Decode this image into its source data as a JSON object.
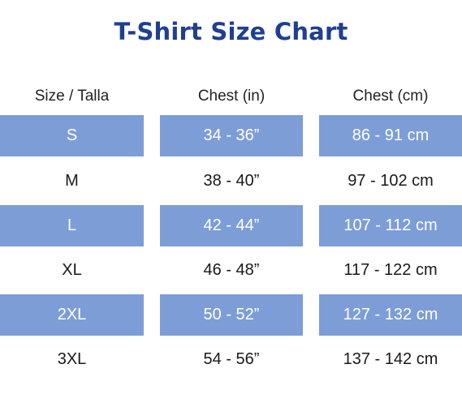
{
  "title": "T-Shirt Size Chart",
  "colors": {
    "title": "#1f3f92",
    "shaded_row": "#7d9dd7",
    "shaded_text": "#ffffff",
    "plain_text": "#1a1a1a"
  },
  "table": {
    "headers": [
      "Size / Talla",
      "Chest (in)",
      "Chest (cm)"
    ],
    "rows": [
      {
        "size": "S",
        "chest_in": "34 - 36”",
        "chest_cm": "86 - 91 cm",
        "shaded": true
      },
      {
        "size": "M",
        "chest_in": "38 - 40”",
        "chest_cm": "97 - 102 cm",
        "shaded": false
      },
      {
        "size": "L",
        "chest_in": "42 - 44”",
        "chest_cm": "107 - 112 cm",
        "shaded": true
      },
      {
        "size": "XL",
        "chest_in": "46 - 48”",
        "chest_cm": "117 - 122 cm",
        "shaded": false
      },
      {
        "size": "2XL",
        "chest_in": "50 - 52”",
        "chest_cm": "127 - 132 cm",
        "shaded": true
      },
      {
        "size": "3XL",
        "chest_in": "54 - 56”",
        "chest_cm": "137 - 142 cm",
        "shaded": false
      }
    ]
  }
}
